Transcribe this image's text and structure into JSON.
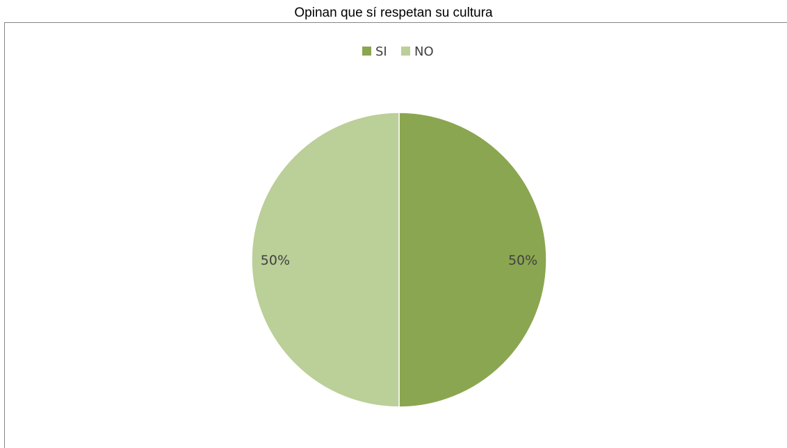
{
  "chart_data": {
    "type": "pie",
    "title": "Opinan que sí respetan su cultura",
    "categories": [
      "SI",
      "NO"
    ],
    "values": [
      50,
      50
    ],
    "data_labels": [
      "50%",
      "50%"
    ],
    "colors": [
      "#8aa650",
      "#bbcf98"
    ],
    "legend_position": "top",
    "start_angle_deg": 0,
    "direction": "clockwise"
  }
}
